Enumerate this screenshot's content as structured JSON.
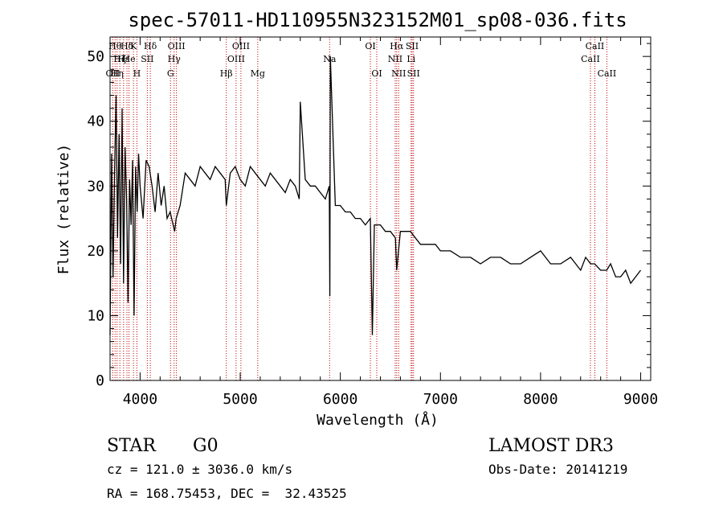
{
  "chart_data": {
    "type": "line",
    "title": "spec-57011-HD110955N323152M01_sp08-036.fits",
    "xlabel": "Wavelength (Å)",
    "ylabel": "Flux (relative)",
    "xlim": [
      3700,
      9100
    ],
    "ylim": [
      0,
      53
    ],
    "xticks": [
      4000,
      5000,
      6000,
      7000,
      8000,
      9000
    ],
    "yticks": [
      0,
      10,
      20,
      30,
      40,
      50
    ],
    "series": [
      {
        "name": "flux",
        "x": [
          3700,
          3715,
          3730,
          3745,
          3760,
          3775,
          3790,
          3805,
          3820,
          3835,
          3850,
          3865,
          3880,
          3895,
          3910,
          3925,
          3940,
          3955,
          3970,
          3985,
          4000,
          4030,
          4060,
          4090,
          4120,
          4150,
          4180,
          4210,
          4240,
          4270,
          4300,
          4330,
          4345,
          4360,
          4400,
          4450,
          4500,
          4550,
          4600,
          4650,
          4700,
          4750,
          4800,
          4850,
          4861,
          4900,
          4950,
          5000,
          5050,
          5100,
          5150,
          5200,
          5250,
          5300,
          5350,
          5400,
          5450,
          5500,
          5550,
          5590,
          5600,
          5650,
          5700,
          5750,
          5800,
          5850,
          5890,
          5895,
          5900,
          5950,
          6000,
          6050,
          6100,
          6150,
          6200,
          6250,
          6300,
          6320,
          6340,
          6400,
          6450,
          6500,
          6550,
          6563,
          6600,
          6650,
          6700,
          6750,
          6800,
          6850,
          6900,
          6950,
          7000,
          7100,
          7200,
          7300,
          7400,
          7500,
          7600,
          7700,
          7800,
          7900,
          8000,
          8100,
          8200,
          8300,
          8400,
          8450,
          8500,
          8540,
          8600,
          8660,
          8700,
          8750,
          8800,
          8850,
          8900,
          8950,
          9000
        ],
        "y": [
          7,
          35,
          16,
          32,
          44,
          22,
          38,
          18,
          42,
          15,
          36,
          28,
          12,
          31,
          24,
          34,
          10,
          33,
          26,
          35,
          30,
          25,
          34,
          33,
          30,
          26,
          32,
          27,
          30,
          25,
          26,
          24,
          23,
          25,
          27,
          32,
          31,
          30,
          33,
          32,
          31,
          33,
          32,
          31,
          27,
          32,
          33,
          31,
          30,
          33,
          32,
          31,
          30,
          32,
          31,
          30,
          29,
          31,
          30,
          28,
          43,
          31,
          30,
          30,
          29,
          28,
          30,
          13,
          50,
          27,
          27,
          26,
          26,
          25,
          25,
          24,
          25,
          7,
          24,
          24,
          23,
          23,
          22,
          17,
          23,
          23,
          23,
          22,
          21,
          21,
          21,
          21,
          20,
          20,
          19,
          19,
          18,
          19,
          19,
          18,
          18,
          19,
          20,
          18,
          18,
          19,
          17,
          19,
          18,
          18,
          17,
          17,
          18,
          16,
          16,
          17,
          15,
          16,
          17
        ]
      }
    ],
    "lines": [
      {
        "wavelength": 3727,
        "label": "OII",
        "row": 3
      },
      {
        "wavelength": 3750,
        "label": "Hθ",
        "row": 1
      },
      {
        "wavelength": 3770,
        "label": "Hη",
        "row": 3
      },
      {
        "wavelength": 3798,
        "label": "Hζ",
        "row": 2
      },
      {
        "wavelength": 3835,
        "label": "Hε",
        "row": 2
      },
      {
        "wavelength": 3869,
        "label": "Hδ",
        "row": 1
      },
      {
        "wavelength": 3889,
        "label": "He",
        "row": 2
      },
      {
        "wavelength": 3934,
        "label": "K",
        "row": 1
      },
      {
        "wavelength": 3968,
        "label": "H",
        "row": 3
      },
      {
        "wavelength": 4072,
        "label": "SII",
        "row": 2
      },
      {
        "wavelength": 4102,
        "label": "Hδ",
        "row": 1
      },
      {
        "wavelength": 4304,
        "label": "G",
        "row": 3
      },
      {
        "wavelength": 4340,
        "label": "Hγ",
        "row": 2
      },
      {
        "wavelength": 4363,
        "label": "OIII",
        "row": 1
      },
      {
        "wavelength": 4861,
        "label": "Hβ",
        "row": 3
      },
      {
        "wavelength": 4959,
        "label": "OIII",
        "row": 2
      },
      {
        "wavelength": 5007,
        "label": "OIII",
        "row": 1
      },
      {
        "wavelength": 5175,
        "label": "Mg",
        "row": 3
      },
      {
        "wavelength": 5893,
        "label": "Na",
        "row": 2
      },
      {
        "wavelength": 6300,
        "label": "OI",
        "row": 1
      },
      {
        "wavelength": 6364,
        "label": "OI",
        "row": 3
      },
      {
        "wavelength": 6548,
        "label": "NII",
        "row": 2
      },
      {
        "wavelength": 6563,
        "label": "Hα",
        "row": 1
      },
      {
        "wavelength": 6583,
        "label": "NII",
        "row": 3
      },
      {
        "wavelength": 6707,
        "label": "Li",
        "row": 2
      },
      {
        "wavelength": 6717,
        "label": "SII",
        "row": 1
      },
      {
        "wavelength": 6731,
        "label": "SII",
        "row": 3
      },
      {
        "wavelength": 8498,
        "label": "CaII",
        "row": 2
      },
      {
        "wavelength": 8542,
        "label": "CaII",
        "row": 1
      },
      {
        "wavelength": 8662,
        "label": "CaII",
        "row": 3
      }
    ]
  },
  "info": {
    "class_label": "STAR",
    "subclass": "G0",
    "survey": "LAMOST DR3",
    "cz": "cz = 121.0 ± 3036.0 km/s",
    "obs_date": "Obs-Date: 20141219",
    "coords": "RA = 168.75453, DEC =  32.43525"
  },
  "colors": {
    "line": "#000000",
    "marker": "#c00000"
  }
}
